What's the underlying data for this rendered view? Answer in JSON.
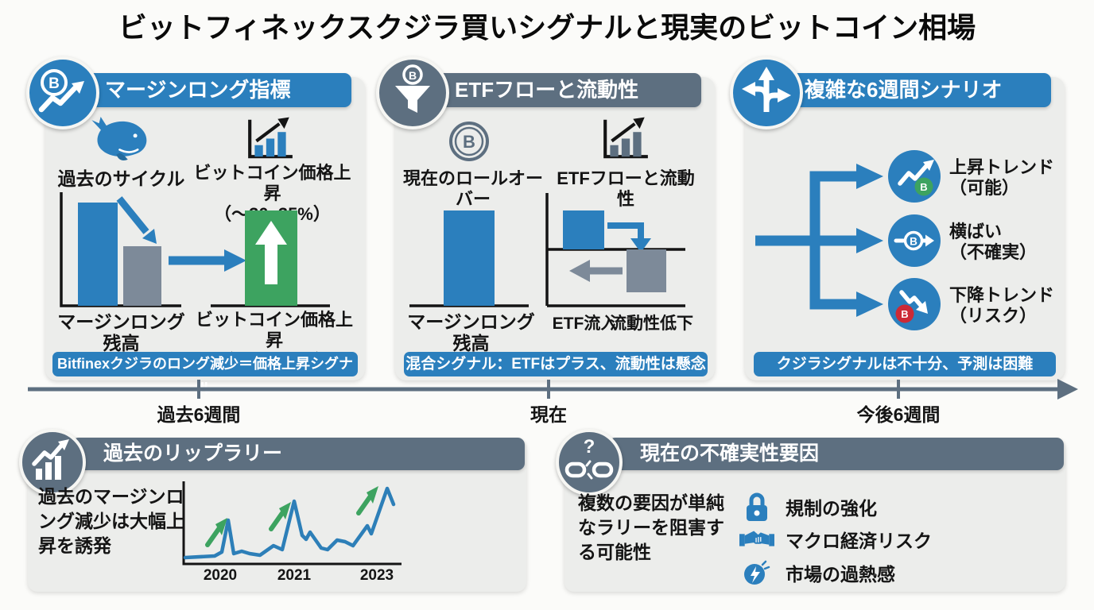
{
  "title": "ビットフィネックスクジラ買いシグナルと現実のビットコイン相場",
  "colors": {
    "blue": "#2b7fbd",
    "slate": "#5d6f80",
    "green": "#3da360",
    "gray": "#7d8a99",
    "red": "#cc2a36",
    "panel_bg": "#ecedeb"
  },
  "panel_margin": {
    "icon": "bitcoin-trend-icon",
    "header": "マージンロング指標",
    "whale_icon": "whale-icon",
    "chart_icon": "bar-chart-up-icon",
    "past_cycle_label": "過去のサイクル",
    "price_up_top": "ビットコイン価格上昇\n（～30–35%）",
    "margin_balance_label": "マージンロング\n残高",
    "price_up_bottom": "ビットコイン価格上昇\n（～30–35%）",
    "banner": "Bitfinexクジラのロング減少＝価格上昇シグナル"
  },
  "panel_etf": {
    "icon": "funnel-bitcoin-icon",
    "coin_icon": "bitcoin-circle-icon",
    "chart_icon": "bar-chart-up-icon",
    "header": "ETFフローと流動性",
    "rollover_label": "現在のロールオーバー",
    "flow_label": "ETFフローと流動性",
    "margin_balance_label": "マージンロング\n残高",
    "etf_inflow_label": "ETF流入",
    "liquidity_label": "流動性低下",
    "banner": "混合シグナル：ETFはプラス、流動性は懸念"
  },
  "panel_scenario": {
    "icon": "branch-arrows-icon",
    "header": "複雑な6週間シナリオ",
    "scenarios": [
      {
        "icon": "trend-up-bitcoin-icon",
        "label": "上昇トレンド\n（可能）"
      },
      {
        "icon": "sideways-bitcoin-icon",
        "label": "横ばい\n（不確実）"
      },
      {
        "icon": "trend-down-bitcoin-icon",
        "label": "下降トレンド\n（リスク）"
      }
    ],
    "banner": "クジラシグナルは不十分、予測は困難"
  },
  "timeline": {
    "past": "過去6週間",
    "present": "現在",
    "future": "今後6週間"
  },
  "panel_rally": {
    "icon": "growth-chart-icon",
    "header": "過去のリップラリー",
    "note": "過去のマージンロ\nング減少は大幅上\n昇を誘発"
  },
  "panel_uncertainty": {
    "icon": "broken-link-icon",
    "header": "現在の不確実性要因",
    "note": "複数の要因が単純\nなラリーを阻害す\nる可能性",
    "items": [
      {
        "icon": "lock-icon",
        "label": "規制の強化"
      },
      {
        "icon": "handshake-icon",
        "label": "マクロ経済リスク"
      },
      {
        "icon": "overheat-icon",
        "label": "市場の過熱感"
      }
    ]
  },
  "chart_data": {
    "type": "line",
    "title": "過去のリップラリー",
    "x_tick_labels": [
      "2020",
      "2021",
      "2023"
    ],
    "y_axis": "相対値（目盛り表示なし）",
    "annotations": "2020・2021・2023の各ピークに緑の上昇矢印",
    "points": [
      [
        8,
        100
      ],
      [
        45,
        98
      ],
      [
        54,
        93
      ],
      [
        62,
        53
      ],
      [
        69,
        95
      ],
      [
        79,
        92
      ],
      [
        89,
        95
      ],
      [
        102,
        97
      ],
      [
        119,
        85
      ],
      [
        130,
        90
      ],
      [
        145,
        29
      ],
      [
        155,
        72
      ],
      [
        160,
        77
      ],
      [
        165,
        68
      ],
      [
        179,
        88
      ],
      [
        187,
        90
      ],
      [
        199,
        78
      ],
      [
        209,
        80
      ],
      [
        219,
        85
      ],
      [
        237,
        60
      ],
      [
        242,
        70
      ],
      [
        262,
        13
      ],
      [
        270,
        33
      ]
    ]
  }
}
